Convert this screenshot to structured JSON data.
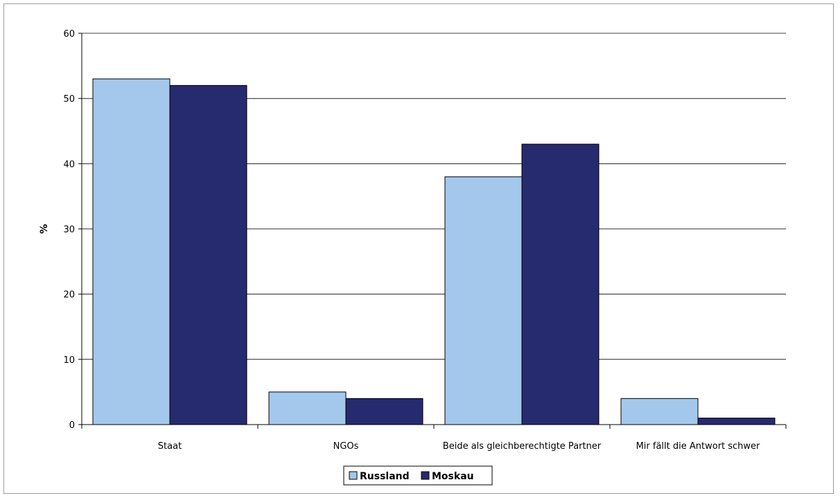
{
  "chart_data": {
    "type": "bar",
    "title": "",
    "xlabel": "",
    "ylabel": "%",
    "ylim": [
      0,
      60
    ],
    "yticks": [
      0,
      10,
      20,
      30,
      40,
      50,
      60
    ],
    "grid": true,
    "legend_position": "bottom-center",
    "categories": [
      "Staat",
      "NGOs",
      "Beide als gleichberechtigte Partner",
      "Mir fällt die Antwort schwer"
    ],
    "series": [
      {
        "name": "Russland",
        "color": "#a3c8ec",
        "values": [
          53,
          5,
          38,
          4
        ]
      },
      {
        "name": "Moskau",
        "color": "#262a6e",
        "values": [
          52,
          4,
          43,
          1
        ]
      }
    ]
  }
}
